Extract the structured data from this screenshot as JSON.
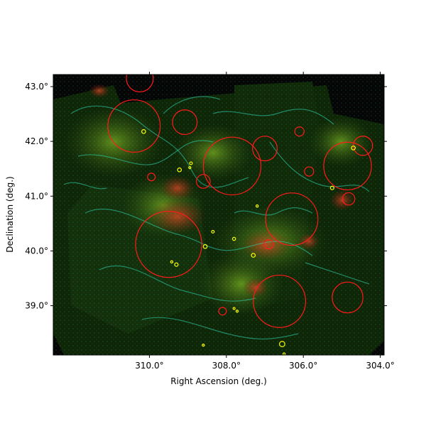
{
  "chart_data": {
    "type": "scatter",
    "title": "",
    "xlabel": "Right Ascension (deg.)",
    "ylabel": "Declination (deg.)",
    "xlim": [
      312.5,
      303.9
    ],
    "ylim": [
      38.1,
      43.22
    ],
    "x_ticks": [
      {
        "value": 310.0,
        "label": "310.0°"
      },
      {
        "value": 308.0,
        "label": "308.0°"
      },
      {
        "value": 306.0,
        "label": "306.0°"
      },
      {
        "value": 304.0,
        "label": "304.0°"
      }
    ],
    "y_ticks": [
      {
        "value": 43.0,
        "label": "43.0°"
      },
      {
        "value": 42.0,
        "label": "42.0°"
      },
      {
        "value": 41.0,
        "label": "41.0°"
      },
      {
        "value": 40.0,
        "label": "40.0°"
      },
      {
        "value": 39.0,
        "label": "39.0°"
      }
    ],
    "grid": false,
    "background_colors": {
      "frame": "#ffffff",
      "sky": "#0a1a05",
      "emission_green": "#3c6a12",
      "emission_red": "#8a2a1a",
      "contours": "#2fd6b4"
    },
    "series": [
      {
        "marker": "circle",
        "color": "#ff1a1a",
        "points": [
          {
            "x": 310.25,
            "y": 43.15,
            "r": 0.35
          },
          {
            "x": 310.4,
            "y": 42.28,
            "r": 0.68
          },
          {
            "x": 309.08,
            "y": 42.35,
            "r": 0.32
          },
          {
            "x": 307.85,
            "y": 41.55,
            "r": 0.75
          },
          {
            "x": 307.0,
            "y": 41.87,
            "r": 0.32
          },
          {
            "x": 308.6,
            "y": 41.27,
            "r": 0.18
          },
          {
            "x": 309.5,
            "y": 40.12,
            "r": 0.86
          },
          {
            "x": 306.3,
            "y": 40.58,
            "r": 0.68
          },
          {
            "x": 304.85,
            "y": 41.55,
            "r": 0.62
          },
          {
            "x": 304.45,
            "y": 41.92,
            "r": 0.25
          },
          {
            "x": 304.82,
            "y": 40.95,
            "r": 0.16
          },
          {
            "x": 306.62,
            "y": 39.08,
            "r": 0.68
          },
          {
            "x": 304.85,
            "y": 39.15,
            "r": 0.4
          },
          {
            "x": 306.1,
            "y": 42.18,
            "r": 0.12
          },
          {
            "x": 306.9,
            "y": 40.12,
            "r": 0.12
          },
          {
            "x": 305.85,
            "y": 41.45,
            "r": 0.12
          },
          {
            "x": 309.95,
            "y": 41.35,
            "r": 0.1
          },
          {
            "x": 308.1,
            "y": 38.9,
            "r": 0.1
          }
        ]
      },
      {
        "marker": "circle",
        "color": "#ffff00",
        "points": [
          {
            "x": 310.15,
            "y": 42.18,
            "r": 0.05
          },
          {
            "x": 309.22,
            "y": 41.48,
            "r": 0.05
          },
          {
            "x": 308.92,
            "y": 41.6,
            "r": 0.035
          },
          {
            "x": 308.95,
            "y": 41.52,
            "r": 0.025
          },
          {
            "x": 304.7,
            "y": 41.88,
            "r": 0.05
          },
          {
            "x": 305.25,
            "y": 41.15,
            "r": 0.045
          },
          {
            "x": 308.55,
            "y": 40.08,
            "r": 0.05
          },
          {
            "x": 308.35,
            "y": 40.35,
            "r": 0.035
          },
          {
            "x": 307.8,
            "y": 40.22,
            "r": 0.04
          },
          {
            "x": 307.3,
            "y": 39.92,
            "r": 0.05
          },
          {
            "x": 309.3,
            "y": 39.75,
            "r": 0.045
          },
          {
            "x": 309.42,
            "y": 39.8,
            "r": 0.03
          },
          {
            "x": 307.2,
            "y": 40.82,
            "r": 0.03
          },
          {
            "x": 306.55,
            "y": 38.3,
            "r": 0.07
          },
          {
            "x": 307.8,
            "y": 38.95,
            "r": 0.025
          },
          {
            "x": 307.72,
            "y": 38.9,
            "r": 0.02
          },
          {
            "x": 306.5,
            "y": 38.12,
            "r": 0.025
          },
          {
            "x": 308.6,
            "y": 38.28,
            "r": 0.02
          }
        ]
      }
    ]
  }
}
